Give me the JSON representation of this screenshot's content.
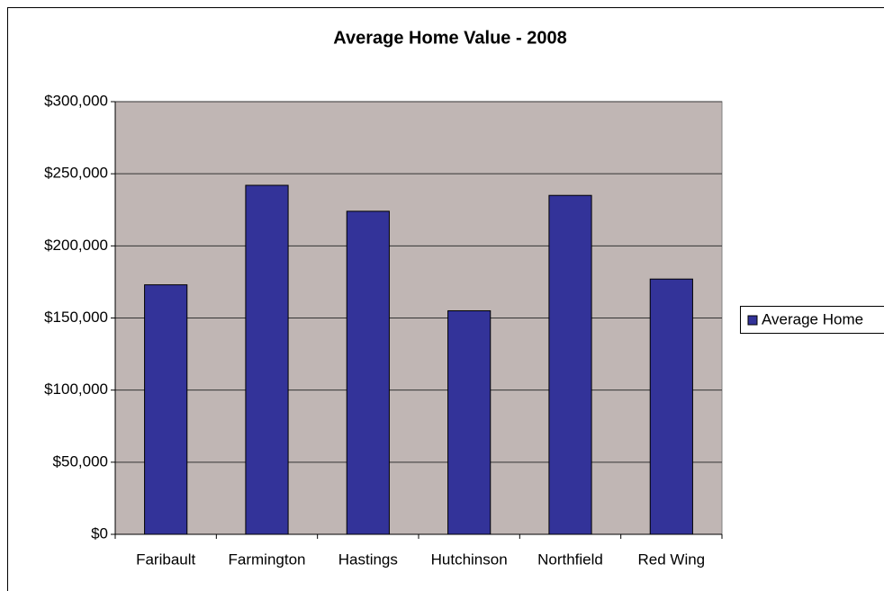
{
  "chart_data": {
    "type": "bar",
    "title": "Average Home Value - 2008",
    "categories": [
      "Faribault",
      "Farmington",
      "Hastings",
      "Hutchinson",
      "Northfield",
      "Red Wing"
    ],
    "series": [
      {
        "name": "Average Home",
        "color": "#333399",
        "values": [
          173000,
          242000,
          224000,
          155000,
          235000,
          177000
        ]
      }
    ],
    "ylim": [
      0,
      300000
    ],
    "yticks": [
      {
        "value": 0,
        "label": "$0"
      },
      {
        "value": 50000,
        "label": "$50,000"
      },
      {
        "value": 100000,
        "label": "$100,000"
      },
      {
        "value": 150000,
        "label": "$150,000"
      },
      {
        "value": 200000,
        "label": "$200,000"
      },
      {
        "value": 250000,
        "label": "$250,000"
      },
      {
        "value": 300000,
        "label": "$300,000"
      }
    ],
    "grid": true,
    "legend": "right"
  }
}
